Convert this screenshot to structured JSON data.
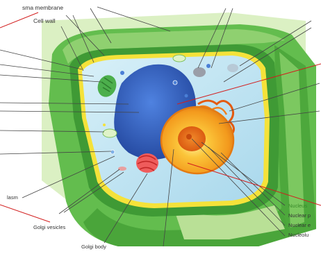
{
  "labels": {
    "plasma_membrane": "sma membrane",
    "cell_wall": "Cell wall",
    "cytoplasm": "lasm",
    "golgi_vesicles": "Golgi vesicles",
    "golgi_body": "Golgi body",
    "nucleus": "Nucleus",
    "nuclear_pore": "Nuclear p",
    "nuclear_envelope": "Nuclear e",
    "nucleolus": "Nucleolu"
  },
  "colors": {
    "cell_wall_outer": "#5fb84a",
    "cell_wall_light": "#b6dd8e",
    "cell_wall_dark": "#3f9a35",
    "membrane": "#f5e23a",
    "cytoplasm": "#bfe3f2",
    "vacuole": "#2f5fc4",
    "nucleus": "#f6a21b",
    "nucleolus": "#e96a12",
    "golgi": "#e84a4a",
    "pointer_red": "#d21e1e"
  }
}
